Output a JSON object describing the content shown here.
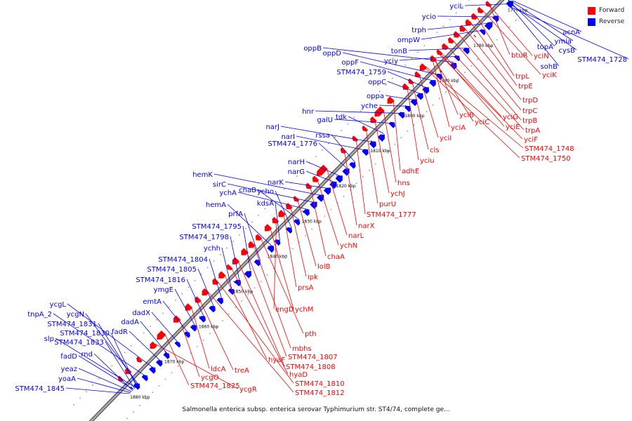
{
  "legend": {
    "forward_label": "Forward",
    "reverse_label": "Reverse",
    "forward_color": "#ff0000",
    "reverse_color": "#0000ff"
  },
  "caption": "Salmonella enterica subsp. enterica serovar Typhimurium str. ST4/74, complete ge...",
  "backbone_color": "#aaaaaa",
  "ticks": [
    "1770 kbp",
    "1780 kbp",
    "1790 kbp",
    "1800 kbp",
    "1810 kbp",
    "1820 kbp",
    "1830 kbp",
    "1840 kbp",
    "1850 kbp",
    "1860 kbp",
    "1870 kbp",
    "1880 kbp"
  ],
  "reverse_labels": [
    "yciL",
    "ycio",
    "trph",
    "ompW",
    "tonB",
    "yciy",
    "oppB",
    "oppD",
    "oppF",
    "STM474_1759",
    "oppC",
    "oppa",
    "yche",
    "hnr",
    "galU",
    "tdk",
    "narJ",
    "narI",
    "rssa",
    "STM474_1776",
    "narH",
    "narG",
    "narK",
    "hemK",
    "sirC",
    "ychA",
    "chaB",
    "ycho",
    "kdsA",
    "hemA",
    "prfA",
    "STM474_1795",
    "STM474_1798",
    "ychh",
    "STM474_1804",
    "STM474_1805",
    "STM474_1816",
    "ymgE",
    "emtA",
    "dadX",
    "dadA",
    "fadR",
    "ycgL",
    "tnpA_2",
    "ycgN",
    "STM474_1831",
    "STM474_1830",
    "slp",
    "STM474_1833",
    "fadD",
    "rnd",
    "yeaz",
    "yoaA",
    "STM474_1845",
    "acnA",
    "ymia",
    "topA",
    "cysB",
    "sohB",
    "STM474_1728"
  ],
  "forward_labels": [
    "btuR",
    "yciN",
    "yciK",
    "trpL",
    "trpE",
    "trpD",
    "trpC",
    "trpB",
    "trpA",
    "yciG",
    "yciE",
    "yciF",
    "yciB",
    "yciC",
    "yciA",
    "STM474_1748",
    "STM474_1750",
    "yciI",
    "cls",
    "yciu",
    "adhE",
    "hns",
    "ychJ",
    "purU",
    "STM474_1777",
    "narX",
    "narL",
    "ychN",
    "chaA",
    "lolB",
    "ipk",
    "prsA",
    "engD",
    "ychM",
    "pth",
    "mbhs",
    "STM474_1807",
    "STM474_1808",
    "hyaD",
    "hyaF",
    "STM474_1810",
    "STM474_1812",
    "treA",
    "ldcA",
    "ycgO",
    "STM474_1825",
    "ycgR"
  ]
}
